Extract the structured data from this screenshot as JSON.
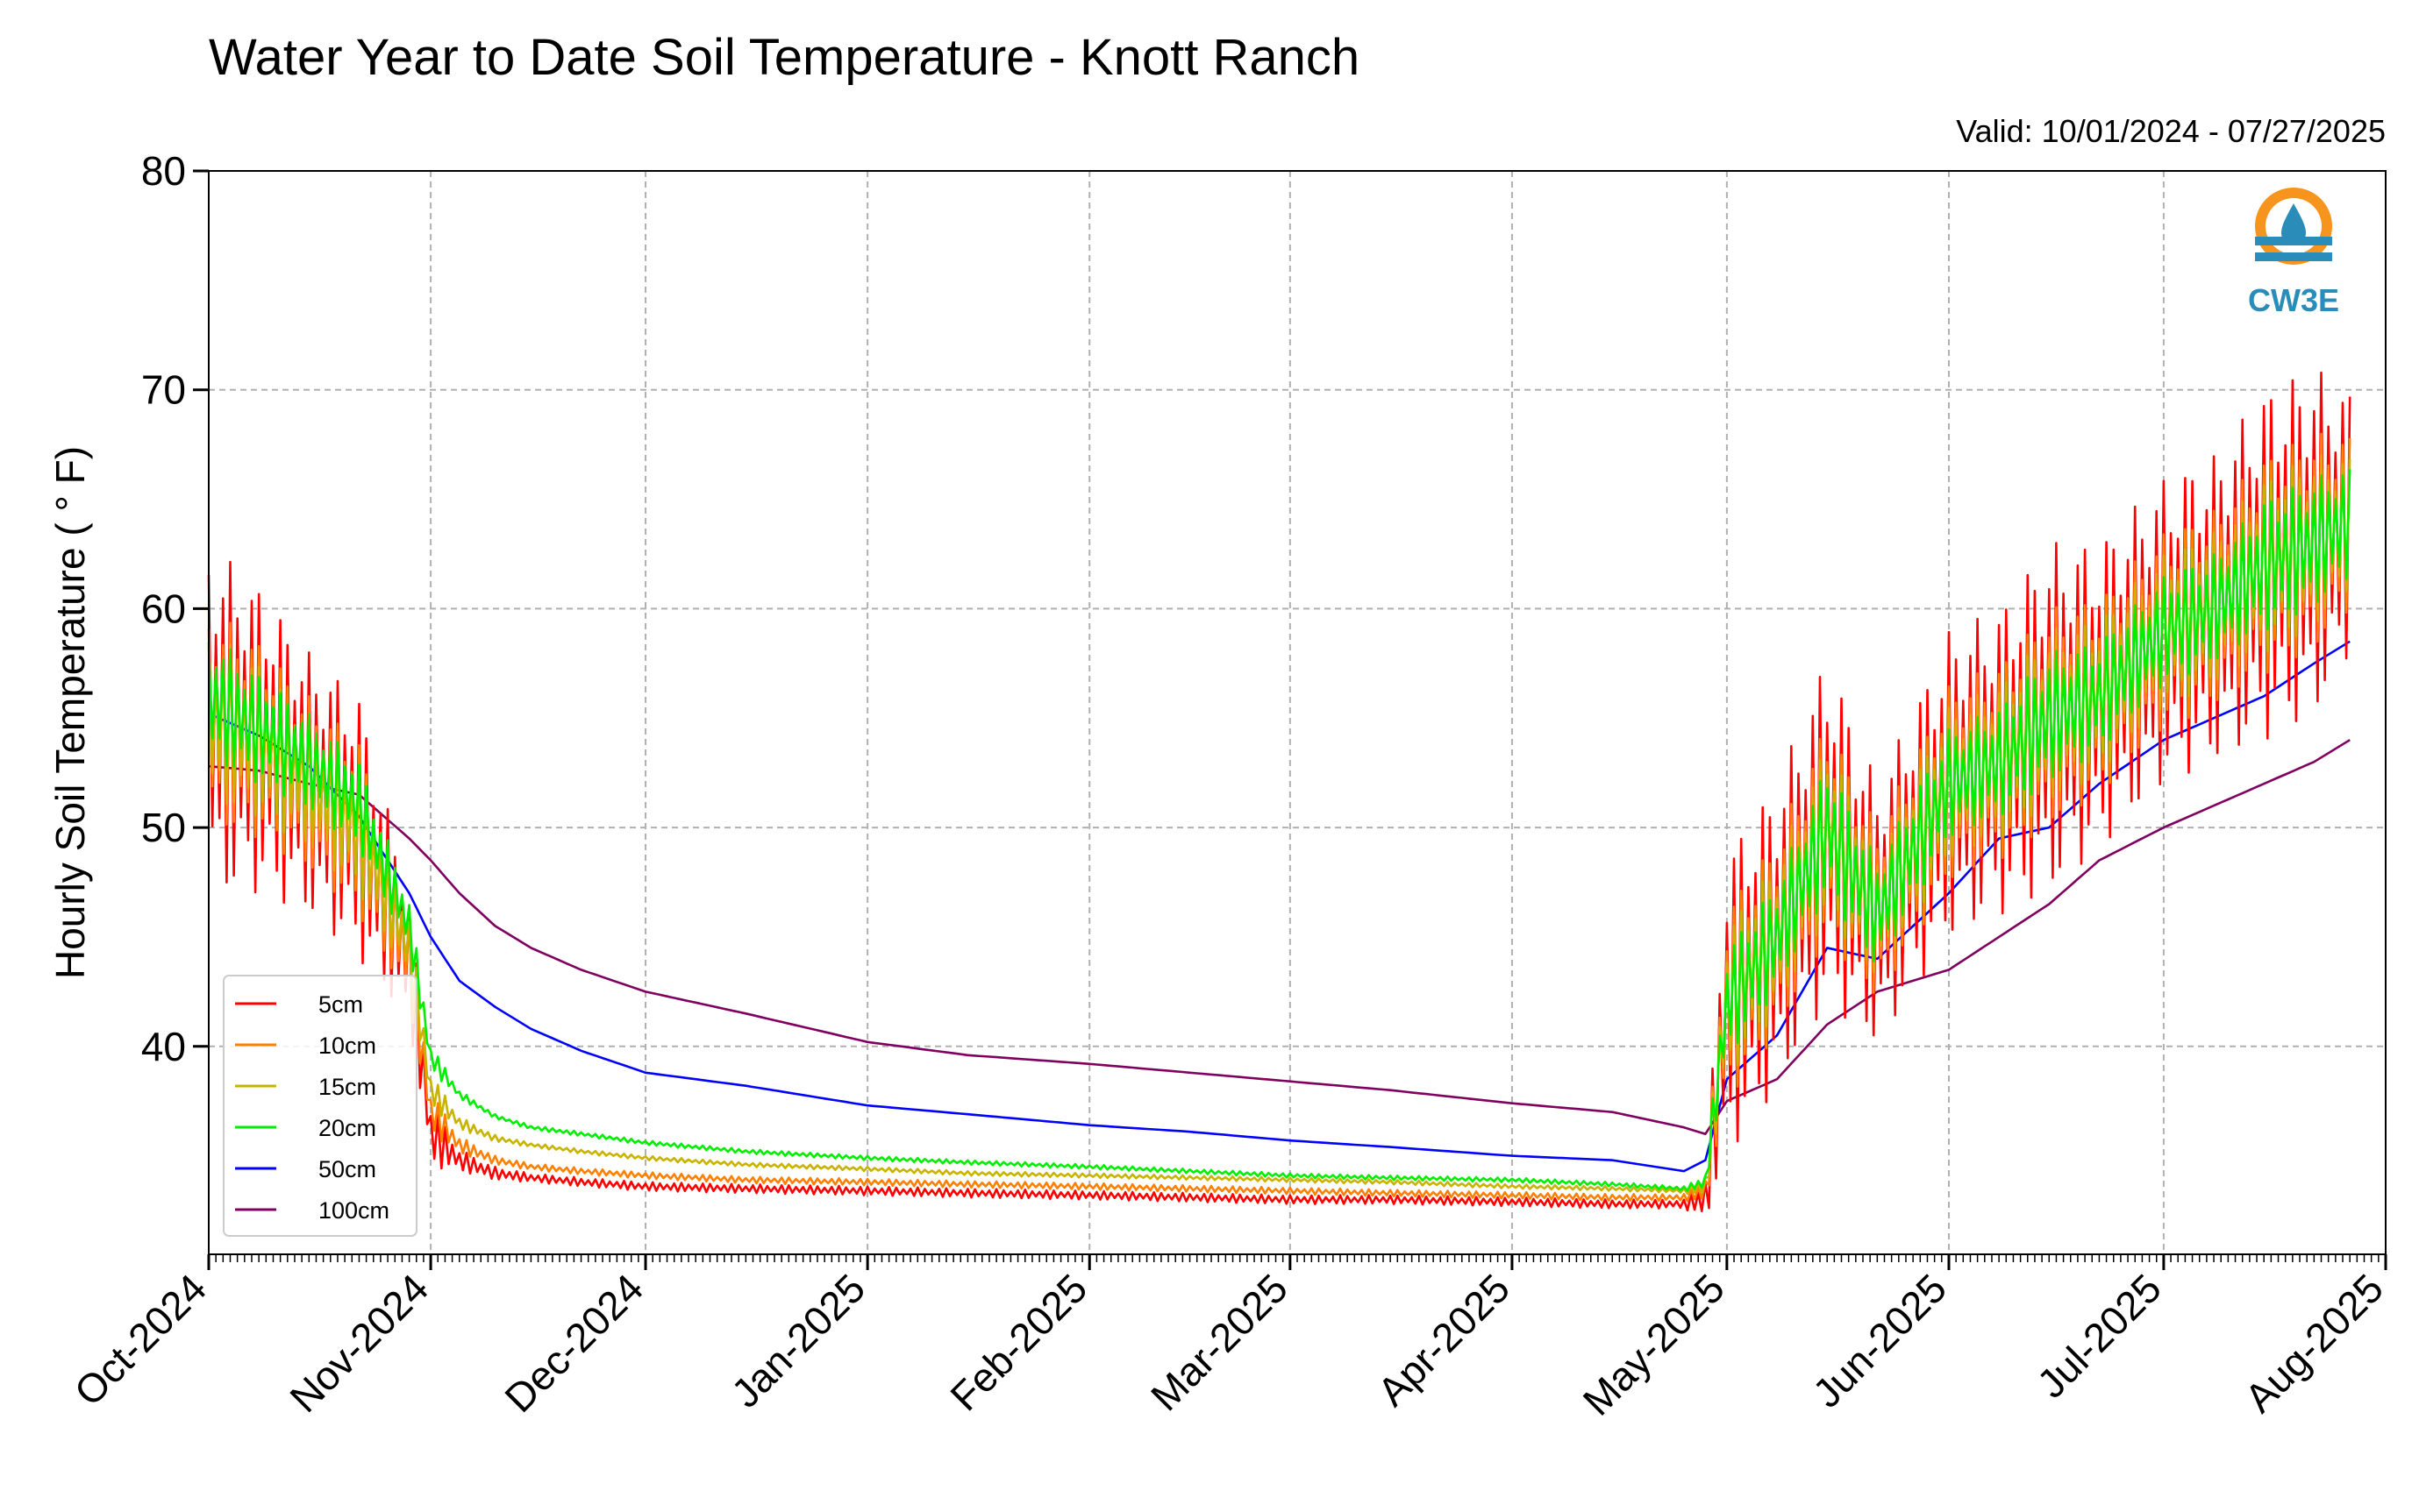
{
  "chart_data": {
    "type": "line",
    "title": "Water Year to Date Soil Temperature - Knott Ranch",
    "subtitle": "Valid: 10/01/2024 - 07/27/2025",
    "xlabel": "",
    "ylabel": "Hourly Soil Temperature ( ° F)",
    "xlim": [
      "2024-10-01",
      "2025-08-01"
    ],
    "ylim": [
      30.5,
      80
    ],
    "x_ticks": [
      "Oct-2024",
      "Nov-2024",
      "Dec-2024",
      "Jan-2025",
      "Feb-2025",
      "Mar-2025",
      "Apr-2025",
      "May-2025",
      "Jun-2025",
      "Jul-2025",
      "Aug-2025"
    ],
    "y_ticks": [
      40,
      50,
      60,
      70,
      80
    ],
    "grid": true,
    "legend_position": "lower-left",
    "x": [
      "2024-10-01",
      "2024-10-08",
      "2024-10-15",
      "2024-10-22",
      "2024-10-29",
      "2024-11-01",
      "2024-11-05",
      "2024-11-10",
      "2024-11-15",
      "2024-11-22",
      "2024-12-01",
      "2024-12-15",
      "2025-01-01",
      "2025-01-15",
      "2025-02-01",
      "2025-02-15",
      "2025-03-01",
      "2025-03-15",
      "2025-04-01",
      "2025-04-15",
      "2025-04-25",
      "2025-04-28",
      "2025-05-01",
      "2025-05-08",
      "2025-05-15",
      "2025-05-22",
      "2025-06-01",
      "2025-06-08",
      "2025-06-15",
      "2025-06-22",
      "2025-07-01",
      "2025-07-08",
      "2025-07-15",
      "2025-07-22",
      "2025-07-27"
    ],
    "series": [
      {
        "name": "5cm",
        "color": "#ff0000",
        "amplitude": [
          8,
          7,
          6,
          6,
          3,
          1.5,
          0.5,
          0.3,
          0.2,
          0.2,
          0.2,
          0.2,
          0.2,
          0.2,
          0.2,
          0.2,
          0.2,
          0.2,
          0.2,
          0.2,
          0.2,
          1,
          7,
          7,
          8,
          6,
          7,
          7,
          8,
          7,
          7,
          7,
          8,
          8,
          6
        ],
        "values": [
          55,
          54,
          52,
          50,
          44,
          36,
          34.8,
          34.2,
          34,
          33.8,
          33.6,
          33.5,
          33.4,
          33.3,
          33.2,
          33.1,
          33,
          33,
          32.9,
          32.8,
          32.8,
          33,
          42,
          45,
          50,
          46,
          52,
          53,
          55,
          56,
          59,
          60,
          62,
          63,
          64
        ]
      },
      {
        "name": "10cm",
        "color": "#ff8000",
        "amplitude": [
          5,
          4.5,
          4,
          4,
          2,
          1,
          0.4,
          0.2,
          0.15,
          0.15,
          0.15,
          0.15,
          0.15,
          0.15,
          0.15,
          0.15,
          0.15,
          0.15,
          0.15,
          0.15,
          0.15,
          0.6,
          4.5,
          4.5,
          5,
          4,
          4.5,
          4.5,
          5,
          4.5,
          4.5,
          4.5,
          5,
          5,
          4
        ],
        "values": [
          55,
          54,
          52,
          50,
          44,
          37,
          35.5,
          34.8,
          34.5,
          34.3,
          34.1,
          33.9,
          33.8,
          33.7,
          33.6,
          33.5,
          33.4,
          33.3,
          33.2,
          33.1,
          33.1,
          33.4,
          42,
          45,
          50,
          46,
          52,
          53,
          55,
          56,
          59,
          60,
          62,
          63,
          64
        ]
      },
      {
        "name": "15cm",
        "color": "#c8b400",
        "amplitude": [
          4,
          3.5,
          3,
          3,
          1.5,
          0.8,
          0.3,
          0.15,
          0.1,
          0.1,
          0.1,
          0.1,
          0.1,
          0.1,
          0.1,
          0.1,
          0.1,
          0.1,
          0.1,
          0.1,
          0.1,
          0.5,
          3.5,
          3.5,
          4,
          3,
          3.5,
          3.5,
          4,
          3.5,
          3.5,
          3.5,
          4,
          4,
          3
        ],
        "values": [
          55,
          54,
          52,
          50,
          44.5,
          38,
          36.5,
          35.8,
          35.5,
          35.2,
          34.9,
          34.6,
          34.4,
          34.2,
          34.1,
          34,
          33.9,
          33.8,
          33.6,
          33.5,
          33.4,
          33.6,
          42,
          45,
          50,
          46,
          52,
          53,
          55,
          56,
          59,
          60,
          62,
          63,
          64
        ]
      },
      {
        "name": "20cm",
        "color": "#00ee00",
        "amplitude": [
          3,
          2.5,
          2.2,
          2,
          1.2,
          0.6,
          0.2,
          0.1,
          0.1,
          0.1,
          0.1,
          0.1,
          0.1,
          0.1,
          0.1,
          0.1,
          0.1,
          0.1,
          0.1,
          0.1,
          0.1,
          0.4,
          2.5,
          2.5,
          3,
          2.5,
          2.5,
          2.5,
          3,
          2.5,
          2.5,
          2.5,
          3,
          3,
          2.5
        ],
        "values": [
          56,
          54.5,
          53,
          51,
          45.5,
          39.5,
          37.8,
          36.8,
          36.3,
          36,
          35.6,
          35.2,
          34.9,
          34.7,
          34.5,
          34.3,
          34.1,
          34,
          33.9,
          33.7,
          33.5,
          33.8,
          42,
          45,
          50,
          46,
          52,
          53,
          55,
          56,
          59,
          60,
          62,
          63,
          64
        ]
      },
      {
        "name": "50cm",
        "color": "#0000ff",
        "amplitude": [
          0,
          0,
          0,
          0,
          0,
          0,
          0,
          0,
          0,
          0,
          0,
          0,
          0,
          0,
          0,
          0,
          0,
          0,
          0,
          0,
          0,
          0,
          0,
          0,
          0,
          0,
          0,
          0,
          0,
          0,
          0,
          0,
          0,
          0,
          0
        ],
        "values": [
          55.2,
          54.2,
          52.8,
          50.5,
          47,
          45,
          43,
          41.8,
          40.8,
          39.8,
          38.8,
          38.2,
          37.3,
          36.9,
          36.4,
          36.1,
          35.7,
          35.4,
          35,
          34.8,
          34.3,
          34.8,
          38.5,
          40.5,
          44.5,
          44,
          47,
          49.5,
          50,
          52,
          54,
          55,
          56,
          57.5,
          58.5
        ]
      },
      {
        "name": "100cm",
        "color": "#800060",
        "amplitude": [
          0,
          0,
          0,
          0,
          0,
          0,
          0,
          0,
          0,
          0,
          0,
          0,
          0,
          0,
          0,
          0,
          0,
          0,
          0,
          0,
          0,
          0,
          0,
          0,
          0,
          0,
          0,
          0,
          0,
          0,
          0,
          0,
          0,
          0,
          0
        ],
        "values": [
          52.8,
          52.6,
          52,
          51.5,
          49.5,
          48.5,
          47,
          45.5,
          44.5,
          43.5,
          42.5,
          41.5,
          40.2,
          39.6,
          39.2,
          38.8,
          38.4,
          38,
          37.4,
          37,
          36.3,
          36,
          37.5,
          38.5,
          41,
          42.5,
          43.5,
          45,
          46.5,
          48.5,
          50,
          51,
          52,
          53,
          54
        ]
      }
    ]
  },
  "logo": {
    "text": "CW3E",
    "icon": "cw3e-water-drop-logo"
  }
}
